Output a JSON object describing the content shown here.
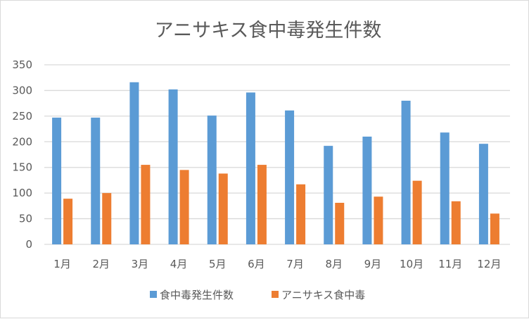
{
  "chart_data": {
    "type": "bar",
    "title": "アニサキス食中毒発生件数",
    "xlabel": "",
    "ylabel": "",
    "ylim": [
      0,
      350
    ],
    "yticks": [
      0,
      50,
      100,
      150,
      200,
      250,
      300,
      350
    ],
    "grid": true,
    "legend_position": "bottom",
    "categories": [
      "1月",
      "2月",
      "3月",
      "4月",
      "5月",
      "6月",
      "7月",
      "8月",
      "9月",
      "10月",
      "11月",
      "12月"
    ],
    "series": [
      {
        "name": "食中毒発生件数",
        "color": "#5B9BD5",
        "values": [
          247,
          247,
          316,
          302,
          251,
          296,
          261,
          192,
          210,
          280,
          218,
          196
        ]
      },
      {
        "name": "アニサキス食中毒",
        "color": "#ED7D31",
        "values": [
          89,
          100,
          155,
          145,
          138,
          155,
          117,
          81,
          93,
          124,
          84,
          60
        ]
      }
    ]
  }
}
